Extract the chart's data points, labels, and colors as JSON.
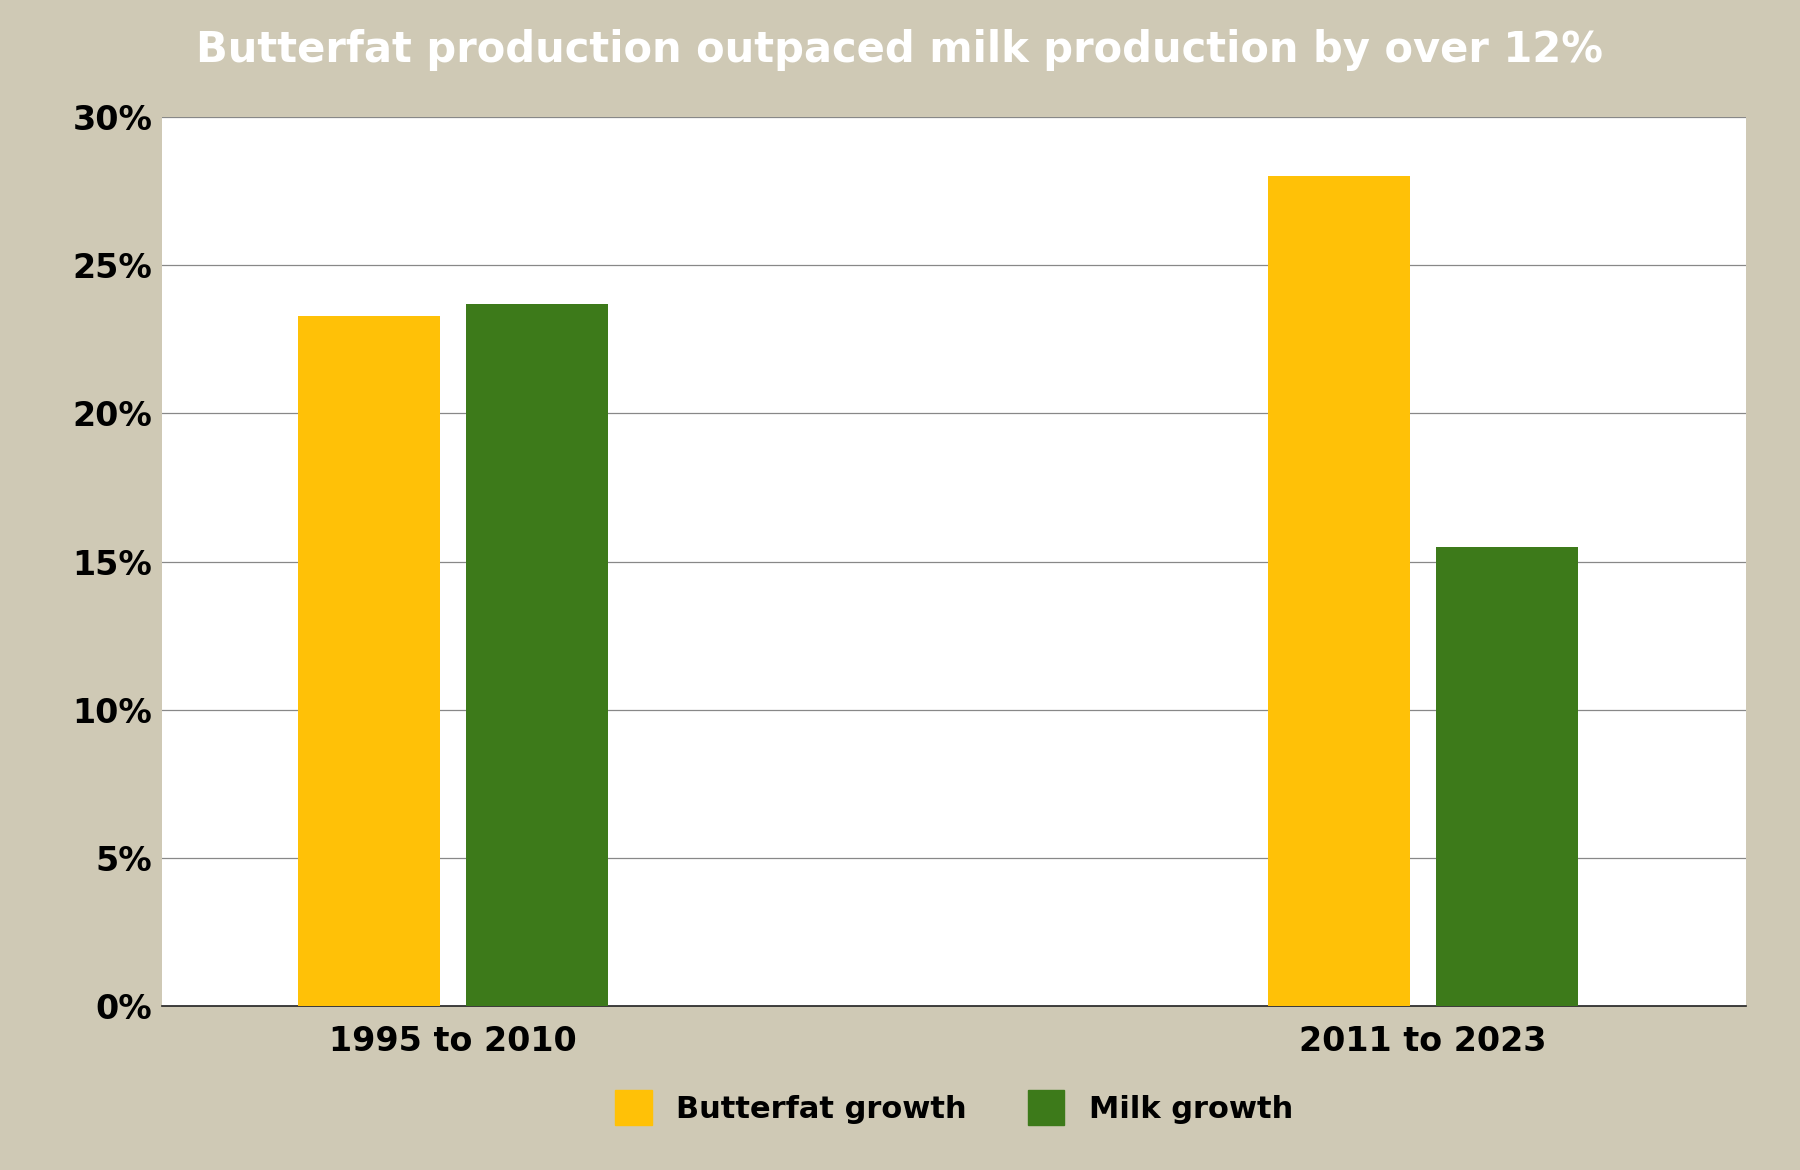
{
  "title": "Butterfat production outpaced milk production by over 12%",
  "title_fontsize": 30,
  "title_color": "#ffffff",
  "title_bg_color": "#1c1c1c",
  "background_color": "#cfc9b5",
  "plot_bg_color": "#ffffff",
  "groups": [
    "1995 to 2010",
    "2011 to 2023"
  ],
  "butterfat_values": [
    23.3,
    28.0
  ],
  "milk_values": [
    23.7,
    15.5
  ],
  "butterfat_color": "#FFC107",
  "milk_color": "#3d7a1a",
  "ylim": [
    0,
    30
  ],
  "yticks": [
    0,
    5,
    10,
    15,
    20,
    25,
    30
  ],
  "ytick_labels": [
    "0%",
    "5%",
    "10%",
    "15%",
    "20%",
    "25%",
    "30%"
  ],
  "legend_butterfat": "Butterfat growth",
  "legend_milk": "Milk growth",
  "bar_width": 0.22,
  "group_centers": [
    1.0,
    2.5
  ],
  "xlim": [
    0.55,
    3.0
  ],
  "tick_fontsize": 24,
  "xlabel_fontsize": 24,
  "legend_fontsize": 22,
  "grid_color": "#888888",
  "spine_color": "#222222"
}
